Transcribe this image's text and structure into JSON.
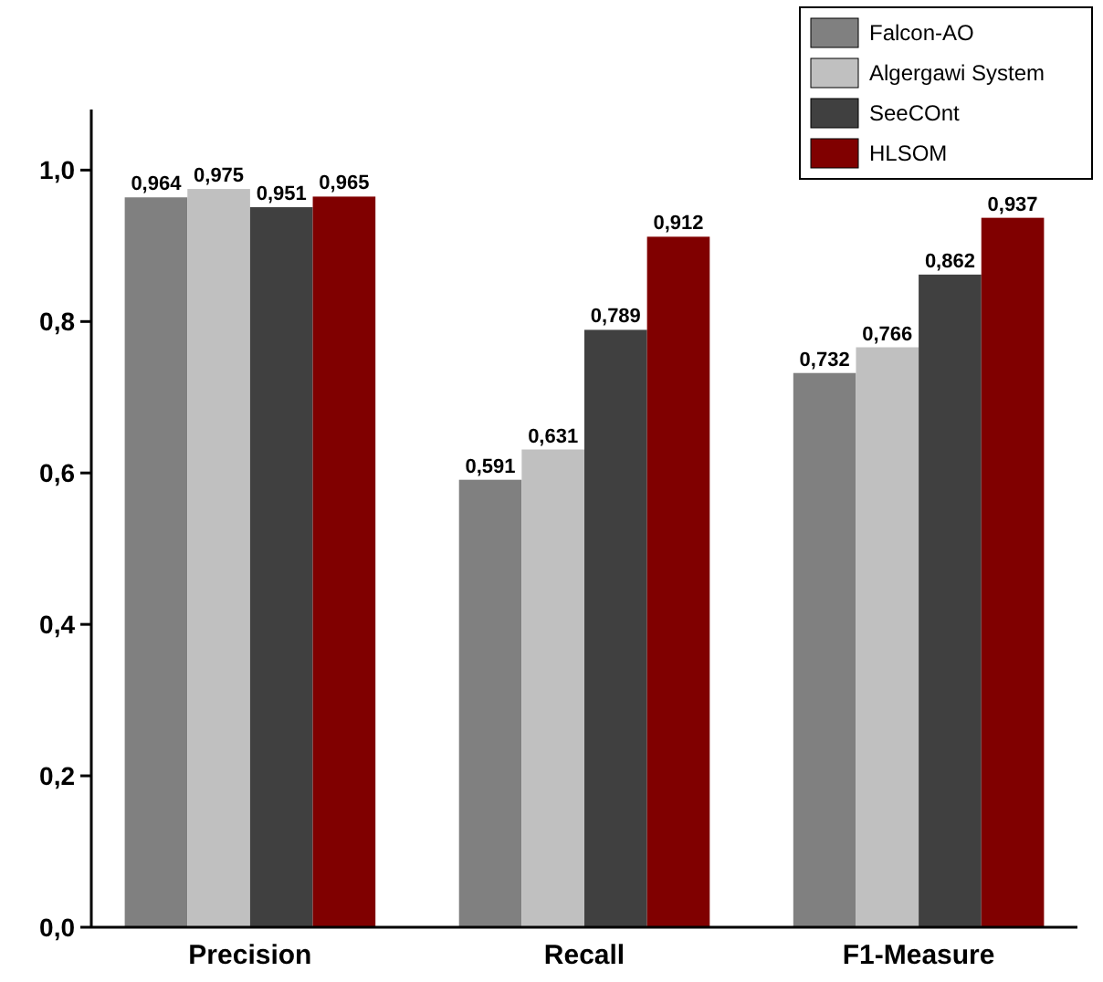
{
  "chart_data": {
    "type": "bar",
    "categories": [
      "Precision",
      "Recall",
      "F1-Measure"
    ],
    "series": [
      {
        "name": "Falcon-AO",
        "color": "#808080",
        "values": [
          0.964,
          0.591,
          0.732
        ],
        "value_labels": [
          "0,964",
          "0,591",
          "0,732"
        ]
      },
      {
        "name": "Algergawi System",
        "color": "#c0c0c0",
        "values": [
          0.975,
          0.631,
          0.766
        ],
        "value_labels": [
          "0,975",
          "0,631",
          "0,766"
        ]
      },
      {
        "name": "SeeCOnt",
        "color": "#404040",
        "values": [
          0.951,
          0.789,
          0.862
        ],
        "value_labels": [
          "0,951",
          "0,789",
          "0,862"
        ]
      },
      {
        "name": "HLSOM",
        "color": "#800000",
        "values": [
          0.965,
          0.912,
          0.937
        ],
        "value_labels": [
          "0,965",
          "0,912",
          "0,937"
        ]
      }
    ],
    "ylim": [
      0,
      1.08
    ],
    "yticks": [
      {
        "value": 0,
        "label": "0,0"
      },
      {
        "value": 0.2,
        "label": "0,2"
      },
      {
        "value": 0.4,
        "label": "0,4"
      },
      {
        "value": 0.6,
        "label": "0,6"
      },
      {
        "value": 0.8,
        "label": "0,8"
      },
      {
        "value": 1,
        "label": "1,0"
      }
    ],
    "legend": "top right",
    "grid": false
  }
}
